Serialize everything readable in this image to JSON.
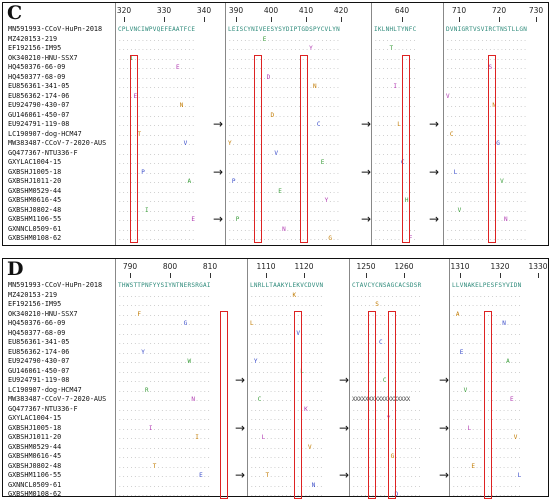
{
  "panels": [
    {
      "letter": "C",
      "names": [
        "MN591993-CCoV-HuPn-2018",
        "MZ420153-219",
        "EF192156-IM95",
        "OK340210-HNU-SSX7",
        "HQ450376-66-09",
        "HQ450377-68-09",
        "EU856361-341-05",
        "EU856362-174-06",
        "EU924790-430-07",
        "GU146061-450-07",
        "EU924791-119-08",
        "LC190907-dog-HCM47",
        "MW383487-CCoV-7-2020-AUS",
        "GQ477367-NTU336-F",
        "GXYLAC1004-15",
        "GXBSHJ1005-18",
        "GXBSHJ1011-20",
        "GXBSHM0529-44",
        "GXBSHM0616-45",
        "GXBSHJ0802-48",
        "GXBSHM1106-55",
        "GXNNCL0509-61",
        "GXBSHM0108-62"
      ],
      "blocks": [
        {
          "ticks": [
            "320",
            "330",
            "340"
          ],
          "ref": "CPLVNCIWPVQEFEAATFCE"
        },
        {
          "ticks": [
            "390",
            "400",
            "410",
            "420"
          ],
          "ref": "LEISCYNIVEESYSYDIPTGDSPYCVLYN"
        },
        {
          "ticks": [
            "640"
          ],
          "ref": "IKLNHLTYNFC"
        },
        {
          "ticks": [
            "710",
            "720",
            "730"
          ],
          "ref": "DVNIGRTVSVIRCTNSTLLGN"
        }
      ]
    },
    {
      "letter": "D",
      "names": [
        "MN591993-CCoV-HuPn-2018",
        "MZ420153-219",
        "EF192156-IM95",
        "OK340210-HNU-SSX7",
        "HQ450376-66-09",
        "HQ450377-68-09",
        "EU856361-341-05",
        "EU856362-174-06",
        "EU924790-430-07",
        "GU146061-450-07",
        "EU924791-119-08",
        "LC190907-dog-HCM47",
        "MW383487-CCoV-7-2020-AUS",
        "GQ477367-NTU336-F",
        "GXYLAC1004-15",
        "GXBSHJ1005-18",
        "GXBSHJ1011-20",
        "GXBSHM0529-44",
        "GXBSHM0616-45",
        "GXBSHJ0802-48",
        "GXBSHM1106-55",
        "GXNNCL0509-61",
        "GXBSHM0108-62"
      ],
      "blocks": [
        {
          "ticks": [
            "790",
            "800",
            "810"
          ],
          "ref": "THWSTTPNFYYSIYNTNERSRGAI"
        },
        {
          "ticks": [
            "1110",
            "1120"
          ],
          "ref": "LNRLLTAAKYLEKVCDVVN"
        },
        {
          "ticks": [
            "1250",
            "1260"
          ],
          "ref": "CTAVCYCNSAGCACSDSR"
        },
        {
          "ticks": [
            "1310",
            "1320",
            "1330"
          ],
          "ref": "LLVNAKELPESFSYVIDN"
        }
      ]
    }
  ],
  "colors": {
    "highlight_box": "#d22222",
    "reference_text": "#2d8a7a"
  }
}
